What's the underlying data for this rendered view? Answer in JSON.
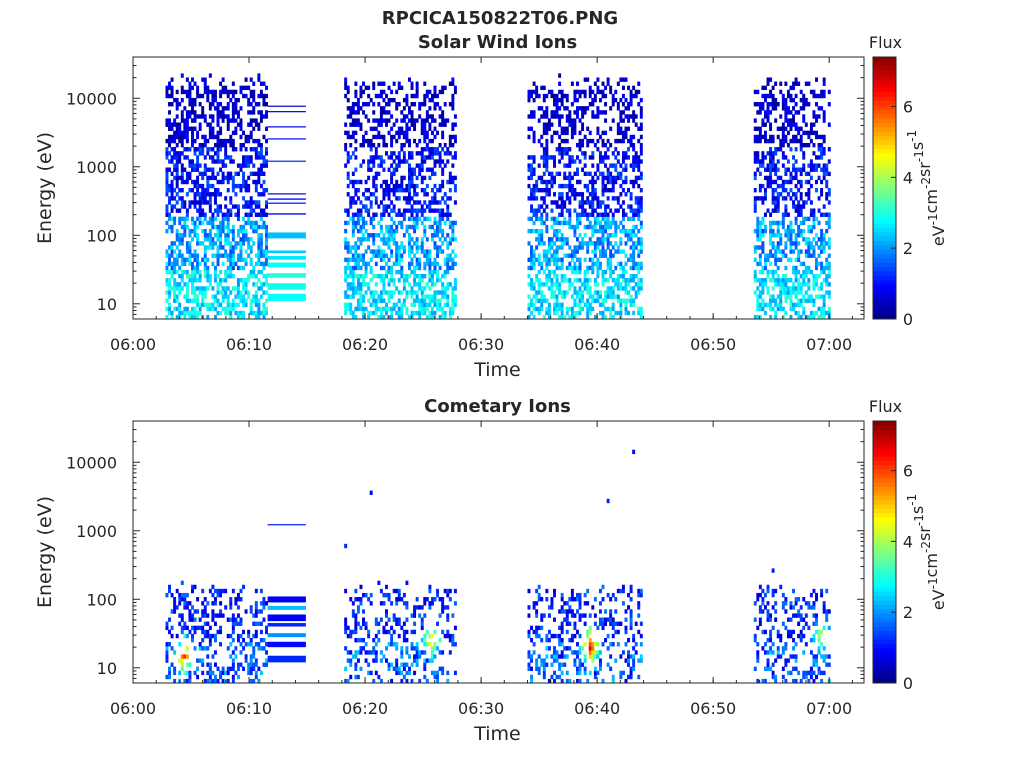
{
  "figure_title": "RPCICA150822T06.PNG",
  "chart_data": [
    {
      "type": "heatmap",
      "title": "Solar Wind Ions",
      "xlabel": "Time",
      "ylabel": "Energy (eV)",
      "x_ticks": [
        "06:00",
        "06:10",
        "06:20",
        "06:30",
        "06:40",
        "06:50",
        "07:00"
      ],
      "x_range_minutes": [
        0,
        63
      ],
      "y_scale": "log",
      "y_range": [
        6,
        40000
      ],
      "y_ticks": [
        10,
        100,
        1000,
        10000
      ],
      "y_tick_labels": [
        "10",
        "100",
        "1000",
        "10000"
      ],
      "colorbar": {
        "label": "Flux",
        "unit_label": "eV-1cm-2sr-1s-1",
        "range": [
          0,
          7.4
        ],
        "ticks": [
          0,
          2,
          4,
          6
        ],
        "colormap": "jet"
      },
      "data_intervals_minutes": [
        [
          2.8,
          11.5
        ],
        [
          18.2,
          27.8
        ],
        [
          34.0,
          43.8
        ],
        [
          53.5,
          60.0
        ]
      ],
      "hold_interval_minutes": [
        11.6,
        14.9
      ],
      "grid": false
    },
    {
      "type": "heatmap",
      "title": "Cometary Ions",
      "xlabel": "Time",
      "ylabel": "Energy (eV)",
      "x_ticks": [
        "06:00",
        "06:10",
        "06:20",
        "06:30",
        "06:40",
        "06:50",
        "07:00"
      ],
      "x_range_minutes": [
        0,
        63
      ],
      "y_scale": "log",
      "y_range": [
        6,
        40000
      ],
      "y_ticks": [
        10,
        100,
        1000,
        10000
      ],
      "y_tick_labels": [
        "10",
        "100",
        "1000",
        "10000"
      ],
      "colorbar": {
        "label": "Flux",
        "unit_label": "eV-1cm-2sr-1s-1",
        "range": [
          0,
          7.4
        ],
        "ticks": [
          0,
          2,
          4,
          6
        ],
        "colormap": "jet"
      },
      "data_intervals_minutes": [
        [
          2.8,
          11.5
        ],
        [
          18.2,
          27.8
        ],
        [
          34.0,
          43.8
        ],
        [
          53.5,
          60.0
        ]
      ],
      "hold_interval_minutes": [
        11.6,
        14.9
      ],
      "hotspots": [
        {
          "t": 4.3,
          "e": 15,
          "flux": 6.0
        },
        {
          "t": 25.6,
          "e": 25,
          "flux": 5.0
        },
        {
          "t": 39.3,
          "e": 20,
          "flux": 6.5
        },
        {
          "t": 59.2,
          "e": 30,
          "flux": 4.2
        }
      ],
      "grid": false
    }
  ]
}
